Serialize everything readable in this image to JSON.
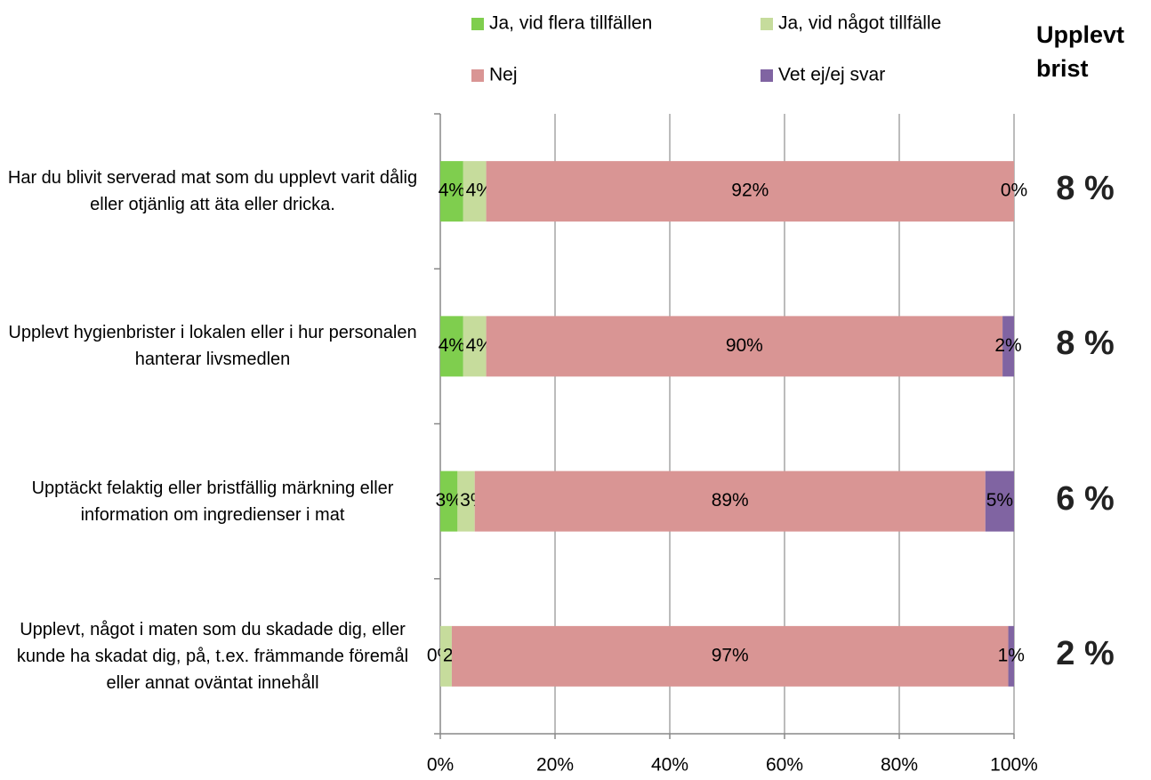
{
  "chart_data": {
    "type": "stacked_barh",
    "categories": [
      "Har du blivit serverad mat som du upplevt varit dålig eller otjänlig att äta eller dricka.",
      "Upplevt hygienbrister i lokalen eller i hur personalen hanterar livsmedlen",
      "Upptäckt felaktig eller bristfällig märkning eller information om ingredienser i mat",
      "Upplevt, något i maten som du skadade dig, eller kunde ha skadat dig, på, t.ex. främmande föremål eller annat oväntat innehåll"
    ],
    "series": [
      {
        "name": "Ja, vid flera tillfällen",
        "color": "#7fce4e",
        "values": [
          4,
          4,
          3,
          0
        ],
        "value_labels": [
          "4%",
          "4%",
          "3%",
          "0%"
        ]
      },
      {
        "name": "Ja, vid något tillfälle",
        "color": "#c6dc9c",
        "values": [
          4,
          4,
          3,
          2
        ],
        "value_labels": [
          "4%",
          "4%",
          "3%",
          "2%"
        ]
      },
      {
        "name": "Nej",
        "color": "#d99594",
        "values": [
          92,
          90,
          89,
          97
        ],
        "value_labels": [
          "92%",
          "90%",
          "89%",
          "97%"
        ]
      },
      {
        "name": "Vet ej/ej svar",
        "color": "#8064a2",
        "values": [
          0,
          2,
          5,
          1
        ],
        "value_labels": [
          "0%",
          "2%",
          "5%",
          "1%"
        ]
      }
    ],
    "xlim": [
      0,
      100
    ],
    "xticks": [
      {
        "value": 0,
        "label": "0%"
      },
      {
        "value": 20,
        "label": "20%"
      },
      {
        "value": 40,
        "label": "40%"
      },
      {
        "value": 60,
        "label": "60%"
      },
      {
        "value": 80,
        "label": "80%"
      },
      {
        "value": 100,
        "label": "100%"
      }
    ],
    "grid": true,
    "legend": "top",
    "side_annotation": {
      "title": "Upplevt brist",
      "values": [
        "8 %",
        "8 %",
        "6 %",
        "2 %"
      ]
    }
  }
}
